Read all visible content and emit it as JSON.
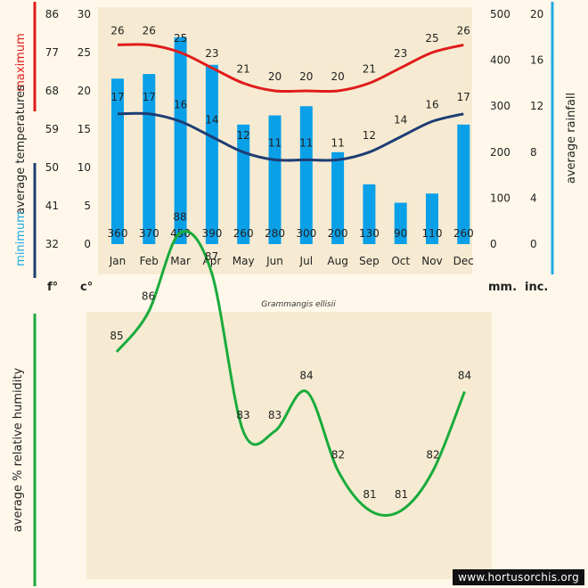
{
  "chart_data": [
    {
      "type": "bar+line",
      "title": "Grammangis ellisii",
      "categories": [
        "Jan",
        "Feb",
        "Mar",
        "Apr",
        "May",
        "Jun",
        "Jul",
        "Aug",
        "Sep",
        "Oct",
        "Nov",
        "Dec"
      ],
      "rainfall_mm": [
        360,
        370,
        450,
        390,
        260,
        280,
        300,
        200,
        130,
        90,
        110,
        260
      ],
      "max_temp_c": [
        26,
        26,
        25,
        23,
        21,
        20,
        20,
        20,
        21,
        23,
        25,
        26
      ],
      "min_temp_c": [
        17,
        17,
        16,
        14,
        12,
        11,
        11,
        11,
        12,
        14,
        16,
        17
      ],
      "axes": {
        "fahrenheit_ticks": [
          "86",
          "77",
          "68",
          "59",
          "50",
          "41",
          "32"
        ],
        "celsius_ticks": [
          "30",
          "25",
          "20",
          "15",
          "10",
          "5",
          "0"
        ],
        "mm_ticks": [
          "500",
          "400",
          "300",
          "200",
          "100",
          "0"
        ],
        "inch_ticks": [
          "20",
          "16",
          "12",
          "8",
          "4",
          "0"
        ],
        "ylim_c": [
          0,
          30
        ],
        "ylim_mm": [
          0,
          500
        ],
        "unit_f": "f°",
        "unit_c": "c°",
        "unit_mm": "mm.",
        "unit_in": "inc."
      },
      "labels": {
        "maximum": "maximum",
        "average_temperatures": "average  temperatures",
        "minimum": "minimum",
        "average_rainfall": "average rainfall"
      },
      "colors": {
        "bar": "#0aa0e8",
        "max_line": "#e01b1b",
        "min_line": "#1d3d73",
        "rain_axis": "#1ea8e6"
      }
    },
    {
      "type": "line",
      "ylabel": "average %  relative humidity",
      "categories": [
        "Jan",
        "Feb",
        "Mar",
        "Apr",
        "May",
        "Jun",
        "Jul",
        "Aug",
        "Sep",
        "Oct",
        "Nov",
        "Dec"
      ],
      "values": [
        85,
        86,
        88,
        87,
        83,
        83,
        84,
        82,
        81,
        81,
        82,
        84
      ],
      "ylim": [
        80,
        89
      ],
      "color": "#1aab3c"
    }
  ],
  "watermark": "www.hortusorchis.org"
}
